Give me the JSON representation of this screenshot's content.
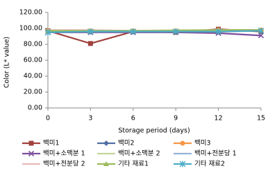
{
  "chart_data": {
    "type": "line",
    "y_label": "Color  (L* value)",
    "x_label": "Storage period (days)",
    "x": [
      0,
      3,
      6,
      9,
      12,
      15
    ],
    "xlim": [
      0,
      15
    ],
    "xticks": [
      0,
      3,
      6,
      9,
      12,
      15
    ],
    "ylim": [
      0,
      120
    ],
    "yticks": [
      {
        "value": 0,
        "label": "0.00"
      },
      {
        "value": 20,
        "label": "20.00"
      },
      {
        "value": 40,
        "label": "40.00"
      },
      {
        "value": 60,
        "label": "60.00"
      },
      {
        "value": 80,
        "label": "80.00"
      },
      {
        "value": 100,
        "label": "100.00"
      },
      {
        "value": 120,
        "label": "120.00"
      }
    ],
    "legend": "bottom",
    "series": [
      {
        "name": "백미1",
        "color": "#a0413d",
        "marker": "square",
        "values": [
          97,
          81,
          96,
          95,
          99,
          96
        ]
      },
      {
        "name": "백미2",
        "color": "#4f6fa5",
        "marker": "diamond",
        "values": [
          96,
          96,
          96,
          96,
          96,
          97
        ]
      },
      {
        "name": "백미3",
        "color": "#f79646",
        "marker": "circle",
        "values": [
          97,
          97,
          97,
          97,
          98,
          98
        ]
      },
      {
        "name": "백미+소맥분 1",
        "color": "#7b4e9c",
        "marker": "cross",
        "values": [
          95,
          95,
          95,
          95,
          94,
          91
        ]
      },
      {
        "name": "백미+소맥분 2",
        "color": "#c3d69b",
        "marker": "none",
        "values": [
          97,
          97,
          97,
          98,
          98,
          98
        ]
      },
      {
        "name": "백미+전분당 1",
        "color": "#95b3d7",
        "marker": "none",
        "values": [
          96,
          96,
          96,
          97,
          97,
          97
        ]
      },
      {
        "name": "백미+전분당 2",
        "color": "#e6b9b8",
        "marker": "none",
        "values": [
          98,
          98,
          97,
          97,
          98,
          98
        ]
      },
      {
        "name": "기타 재료1",
        "color": "#9bbb59",
        "marker": "triangle",
        "values": [
          97,
          97,
          97,
          97,
          98,
          98
        ]
      },
      {
        "name": "기타 재료2",
        "color": "#4bacc6",
        "marker": "star",
        "values": [
          95,
          96,
          96,
          96,
          96,
          97
        ]
      }
    ]
  }
}
